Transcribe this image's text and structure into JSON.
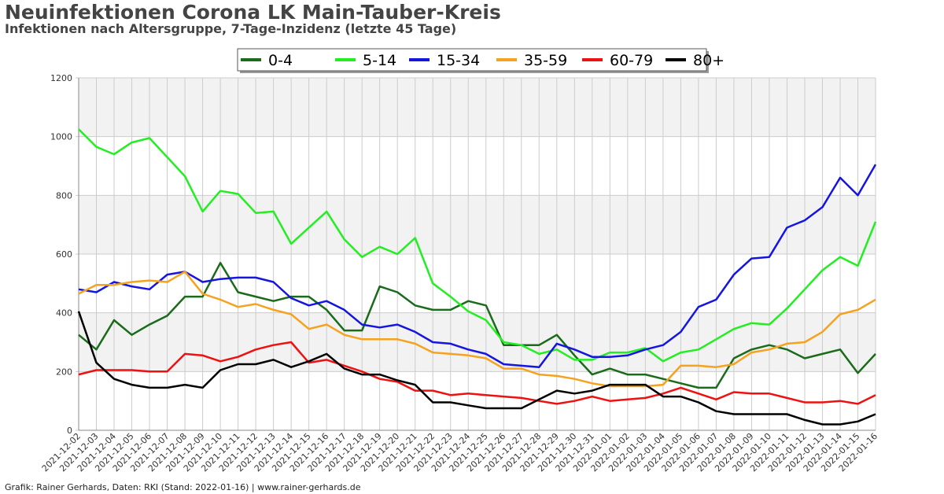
{
  "title": "Neuinfektionen Corona LK Main-Tauber-Kreis",
  "subtitle": "Infektionen nach Altersgruppe, 7-Tage-Inzidenz (letzte 45 Tage)",
  "footer": "Grafik: Rainer Gerhards, Daten: RKI (Stand: 2022-01-16) | www.rainer-gerhards.de",
  "chart_data": {
    "type": "line",
    "ylim": [
      0,
      1200
    ],
    "yticks": [
      0,
      200,
      400,
      600,
      800,
      1000,
      1200
    ],
    "grid": true,
    "legend_position": "top-center",
    "x": [
      "2021-12-02",
      "2021-12-03",
      "2021-12-04",
      "2021-12-05",
      "2021-12-06",
      "2021-12-07",
      "2021-12-08",
      "2021-12-09",
      "2021-12-10",
      "2021-12-11",
      "2021-12-12",
      "2021-12-13",
      "2021-12-14",
      "2021-12-15",
      "2021-12-16",
      "2021-12-17",
      "2021-12-18",
      "2021-12-19",
      "2021-12-20",
      "2021-12-21",
      "2021-12-22",
      "2021-12-23",
      "2021-12-24",
      "2021-12-25",
      "2021-12-26",
      "2021-12-27",
      "2021-12-28",
      "2021-12-29",
      "2021-12-30",
      "2021-12-31",
      "2022-01-01",
      "2022-01-02",
      "2022-01-03",
      "2022-01-04",
      "2022-01-05",
      "2022-01-06",
      "2022-01-07",
      "2022-01-08",
      "2022-01-09",
      "2022-01-10",
      "2022-01-11",
      "2022-01-12",
      "2022-01-13",
      "2022-01-14",
      "2022-01-15",
      "2022-01-16"
    ],
    "series": [
      {
        "name": "0-4",
        "color": "#1a6b1a",
        "values": [
          325,
          275,
          375,
          325,
          360,
          390,
          455,
          455,
          570,
          470,
          455,
          440,
          455,
          455,
          410,
          340,
          340,
          490,
          470,
          425,
          410,
          410,
          440,
          425,
          290,
          290,
          290,
          325,
          255,
          190,
          210,
          190,
          190,
          175,
          160,
          145,
          145,
          245,
          275,
          290,
          275,
          245,
          260,
          275,
          195,
          260
        ]
      },
      {
        "name": "5-14",
        "color": "#22ee22",
        "values": [
          1025,
          965,
          940,
          980,
          995,
          930,
          865,
          745,
          815,
          805,
          740,
          745,
          635,
          690,
          745,
          650,
          590,
          625,
          600,
          655,
          500,
          455,
          405,
          375,
          300,
          290,
          260,
          275,
          240,
          240,
          265,
          265,
          280,
          235,
          265,
          275,
          310,
          345,
          365,
          360,
          415,
          480,
          545,
          590,
          560,
          710
        ]
      },
      {
        "name": "15-34",
        "color": "#1515e0",
        "values": [
          480,
          470,
          505,
          490,
          480,
          530,
          540,
          505,
          515,
          520,
          520,
          505,
          450,
          425,
          440,
          410,
          360,
          350,
          360,
          335,
          300,
          295,
          275,
          260,
          225,
          220,
          215,
          295,
          275,
          250,
          250,
          255,
          275,
          290,
          335,
          420,
          445,
          530,
          585,
          590,
          690,
          715,
          760,
          860,
          800,
          905
        ]
      },
      {
        "name": "35-59",
        "color": "#f5a21f",
        "values": [
          465,
          495,
          495,
          505,
          510,
          505,
          540,
          465,
          445,
          420,
          430,
          410,
          395,
          345,
          360,
          325,
          310,
          310,
          310,
          295,
          265,
          260,
          255,
          245,
          210,
          210,
          190,
          185,
          175,
          160,
          150,
          150,
          150,
          155,
          220,
          220,
          215,
          225,
          265,
          275,
          295,
          300,
          335,
          395,
          410,
          445
        ]
      },
      {
        "name": "60-79",
        "color": "#ee1111",
        "values": [
          190,
          205,
          205,
          205,
          200,
          200,
          260,
          255,
          235,
          250,
          275,
          290,
          300,
          230,
          240,
          220,
          200,
          175,
          165,
          135,
          135,
          120,
          125,
          120,
          115,
          110,
          100,
          90,
          100,
          115,
          100,
          105,
          110,
          125,
          145,
          125,
          105,
          130,
          125,
          125,
          110,
          95,
          95,
          100,
          90,
          120
        ]
      },
      {
        "name": "80+",
        "color": "#000000",
        "values": [
          405,
          230,
          175,
          155,
          145,
          145,
          155,
          145,
          205,
          225,
          225,
          240,
          215,
          235,
          260,
          210,
          190,
          190,
          170,
          155,
          95,
          95,
          85,
          75,
          75,
          75,
          105,
          135,
          125,
          135,
          155,
          155,
          155,
          115,
          115,
          95,
          65,
          55,
          55,
          55,
          55,
          35,
          20,
          20,
          30,
          55
        ]
      }
    ]
  }
}
